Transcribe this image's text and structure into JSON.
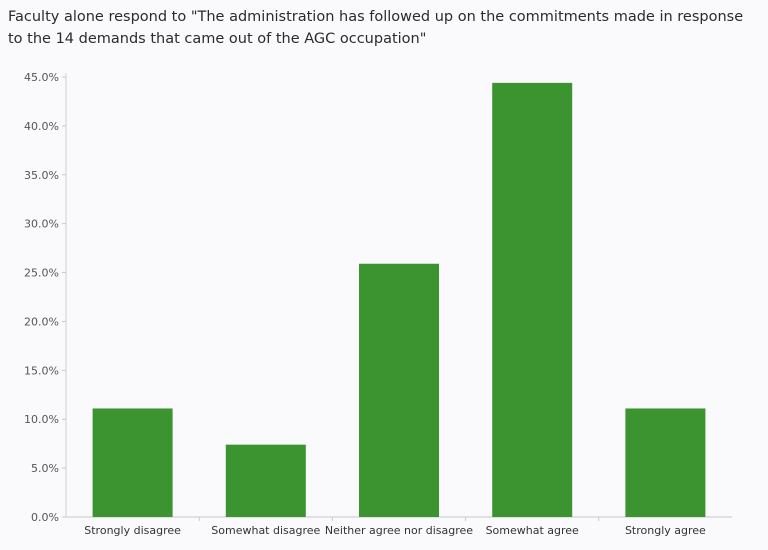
{
  "chart_data": {
    "type": "bar",
    "title": "Faculty alone respond to \"The administration has followed up on the commitments made in response to the 14 demands that came out of the AGC occupation\"",
    "categories": [
      "Strongly disagree",
      "Somewhat disagree",
      "Neither agree nor disagree",
      "Somewhat agree",
      "Strongly agree"
    ],
    "values": [
      11.1,
      7.4,
      25.9,
      44.4,
      11.1
    ],
    "y_ticks": [
      "0.0%",
      "5.0%",
      "10.0%",
      "15.0%",
      "20.0%",
      "25.0%",
      "30.0%",
      "35.0%",
      "40.0%",
      "45.0%"
    ],
    "ylim": [
      0,
      45
    ],
    "bar_color": "#3c9431",
    "grid": false
  }
}
